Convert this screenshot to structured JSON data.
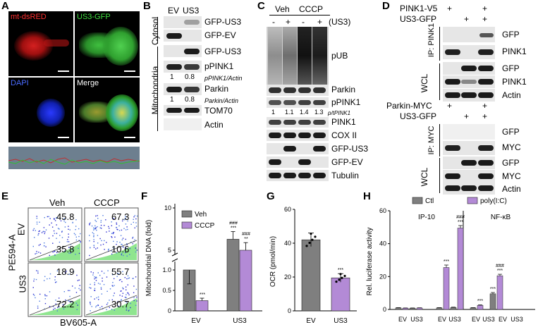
{
  "panels": {
    "A": {
      "letter": "A",
      "channels": [
        "mt-dsRED",
        "US3-GFP",
        "DAPI",
        "Merge"
      ]
    },
    "B": {
      "letter": "B",
      "lanes": [
        "EV",
        "US3"
      ],
      "sections": [
        "Cytosol",
        "Mitochondria"
      ],
      "rows": [
        "GFP-US3",
        "GFP-EV",
        "GFP-US3",
        "pPINK1",
        "Parkin",
        "TOM70",
        "Actin"
      ],
      "quant1": {
        "values": [
          "1",
          "0.8"
        ],
        "label": "pPINK1/Actin"
      },
      "quant2": {
        "values": [
          "1",
          "0.8"
        ],
        "label": "Parkin/Actin"
      }
    },
    "C": {
      "letter": "C",
      "groups": [
        "Veh",
        "CCCP"
      ],
      "signs": [
        "-",
        "+",
        "-",
        "+"
      ],
      "us3_label": "(US3)",
      "rows": [
        "pUB",
        "Parkin",
        "pPINK1",
        "PINK1",
        "COX II",
        "GFP-US3",
        "GFP-EV",
        "Tubulin"
      ],
      "quant": {
        "values": [
          "1",
          "1.1",
          "1.4",
          "1.3"
        ],
        "label": "p/tPINK1"
      }
    },
    "D": {
      "letter": "D",
      "top": {
        "construct1": "PINK1-V5",
        "construct2": "US3-GFP",
        "signs1": [
          "+",
          "",
          "+"
        ],
        "signs2": [
          "",
          "+",
          "+"
        ],
        "ip_label": "IP:",
        "ip_target": "PINK1",
        "wcl": "WCL",
        "rows": [
          "GFP",
          "PINK1",
          "GFP",
          "PINK1",
          "Actin"
        ]
      },
      "bottom": {
        "construct1": "Parkin-MYC",
        "construct2": "US3-GFP",
        "signs1": [
          "+",
          "",
          "+"
        ],
        "signs2": [
          "",
          "+",
          "+"
        ],
        "ip_label": "IP:",
        "ip_target": "MYC",
        "wcl": "WCL",
        "rows": [
          "GFP",
          "MYC",
          "GFP",
          "MYC",
          "Actin"
        ]
      }
    },
    "E": {
      "letter": "E",
      "col_labels": [
        "Veh",
        "CCCP"
      ],
      "row_labels": [
        "EV",
        "US3"
      ],
      "xaxis": "BV605-A",
      "yaxis": "PE594-A",
      "quadrants": [
        {
          "top": "45.8",
          "bottom": "35.8"
        },
        {
          "top": "67.3",
          "bottom": "10.6"
        },
        {
          "top": "18.9",
          "bottom": "72.2"
        },
        {
          "top": "55.7",
          "bottom": "30.7"
        }
      ]
    },
    "F": {
      "letter": "F"
    },
    "G": {
      "letter": "G"
    },
    "H": {
      "letter": "H"
    }
  },
  "colors": {
    "gray_bar": "#7f7f7f",
    "purple_bar": "#b38ad6"
  },
  "chart_data": [
    {
      "id": "F",
      "type": "bar",
      "categories": [
        "EV",
        "US3"
      ],
      "series": [
        {
          "name": "Veh",
          "values": [
            1.0,
            6.3
          ],
          "errors": [
            0.02,
            0.9
          ]
        },
        {
          "name": "CCCP",
          "values": [
            0.25,
            5.0
          ],
          "errors": [
            0.06,
            0.9
          ]
        }
      ],
      "significance": [
        {
          "category": "EV",
          "series": "CCCP",
          "label": "***"
        },
        {
          "category": "US3",
          "series": "Veh",
          "label": "###\n***"
        },
        {
          "category": "US3",
          "series": "CCCP",
          "label": "###\n**"
        }
      ],
      "ylabel": "Mitochondrial DNA (fold)",
      "y_ticks": [
        "0",
        "0.5",
        "1.0",
        "5",
        "10"
      ],
      "legend": "top-left",
      "broken_axis": true
    },
    {
      "id": "G",
      "type": "bar",
      "categories": [
        "EV",
        "US3"
      ],
      "series": [
        {
          "name": "",
          "values": [
            42,
            19.5
          ],
          "errors": [
            4,
            2.5
          ]
        }
      ],
      "significance": [
        {
          "category": "US3",
          "label": "***"
        }
      ],
      "ylabel": "OCR (pmol/min)",
      "ylim": [
        0,
        60
      ],
      "y_ticks": [
        "0",
        "20",
        "40",
        "60"
      ]
    },
    {
      "id": "H",
      "type": "bar",
      "legend": [
        "Ctl",
        "poly(I:C)"
      ],
      "groups": [
        "IP-10",
        "NF-κB"
      ],
      "categories": [
        "EV",
        "US3",
        "EV",
        "US3"
      ],
      "series": [
        {
          "name": "Ctl",
          "values": [
            1,
            0.8,
            1,
            1.2
          ],
          "errors": [
            0.1,
            0.1,
            0.1,
            0.2
          ]
        },
        {
          "name": "poly(I:C)",
          "values": [
            0.8,
            0.9,
            25.5,
            49.5
          ],
          "errors": [
            0.1,
            0.1,
            1.5,
            1.5
          ]
        }
      ],
      "nfkb": {
        "Ctl": [
          1,
          9.5
        ],
        "poly(I:C)": [
          2.5,
          20.5
        ]
      },
      "significance": [
        {
          "label": "***",
          "at": "IP-10 US3 Ctl"
        },
        {
          "label": "###\n***",
          "at": "IP-10 US3 poly(I:C)"
        },
        {
          "label": "***",
          "at": "NF-κB EV poly(I:C)"
        },
        {
          "label": "***",
          "at": "NF-κB US3 Ctl"
        },
        {
          "label": "###\n***",
          "at": "NF-κB US3 poly(I:C)"
        }
      ],
      "ylabel": "Rel. luciferase activity",
      "ylim": [
        0,
        60
      ],
      "y_ticks": [
        "0",
        "20",
        "40",
        "60"
      ]
    }
  ]
}
